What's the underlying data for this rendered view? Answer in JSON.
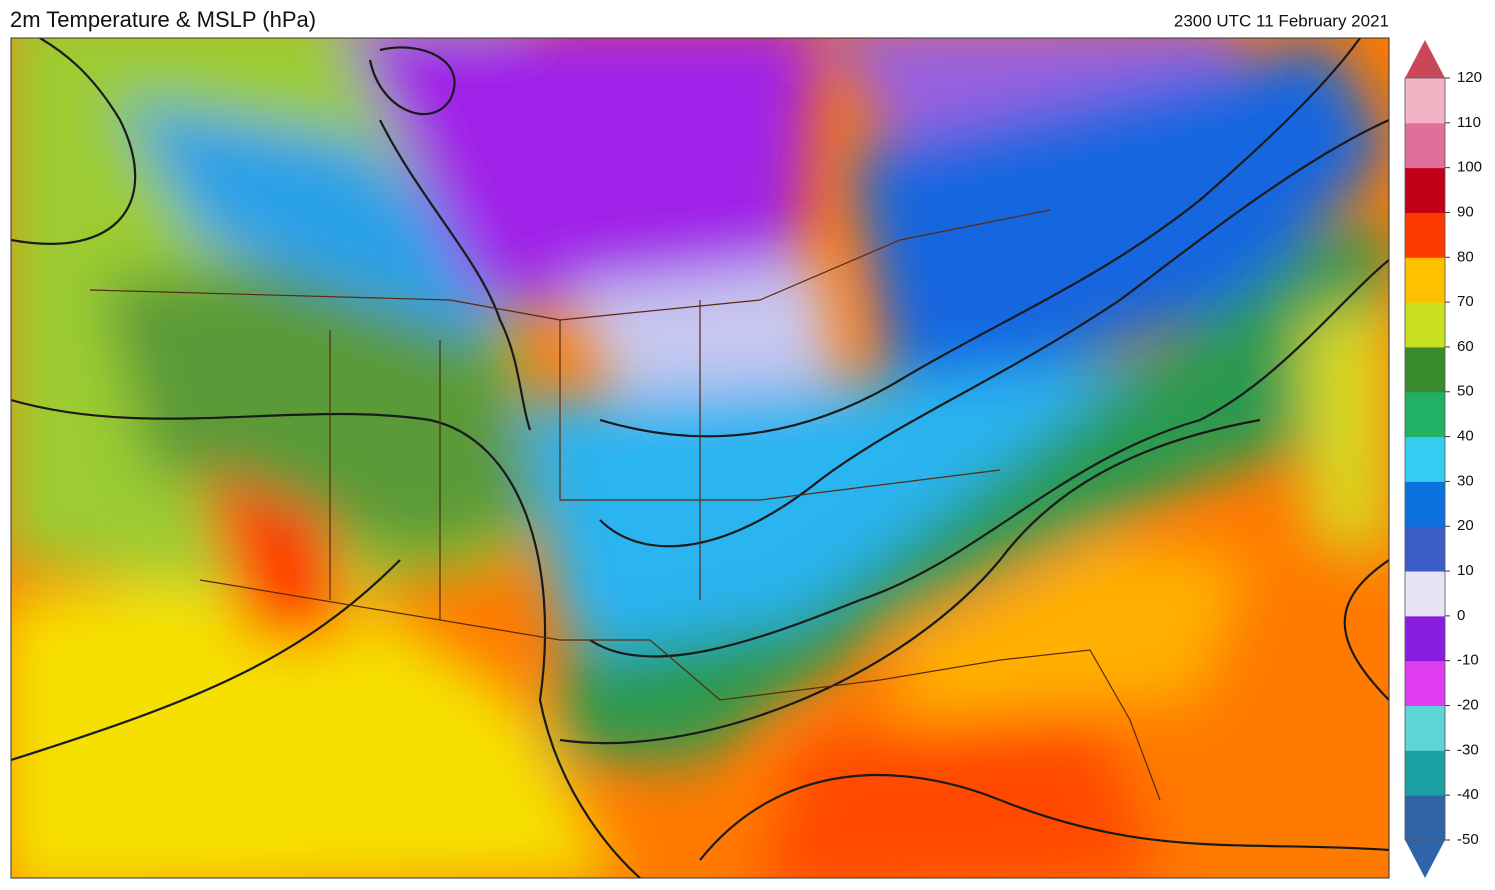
{
  "header": {
    "title": "2m Temperature & MSLP (hPa)",
    "timestamp": "2300 UTC 11 February 2021"
  },
  "colorbar": {
    "lim": [
      -50,
      120
    ],
    "ticks": [
      -50,
      -40,
      -30,
      -20,
      -10,
      0,
      10,
      20,
      30,
      40,
      50,
      60,
      70,
      80,
      90,
      100,
      110,
      120
    ],
    "colors": [
      "#2f64a8",
      "#1aa0a0",
      "#5cd4d8",
      "#e03cf0",
      "#8a1ee0",
      "#e6e4f6",
      "#3c5cc8",
      "#0c72e0",
      "#36ccf2",
      "#22b064",
      "#3a8a2e",
      "#c8e020",
      "#ffc000",
      "#ff3a00",
      "#c00018",
      "#e0709a",
      "#f2b4c4",
      "#c8485a"
    ]
  }
}
